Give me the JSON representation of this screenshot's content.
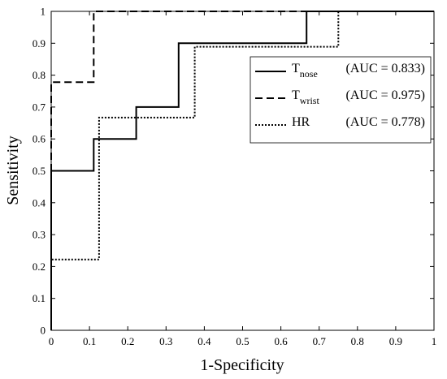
{
  "chart_data": {
    "type": "line",
    "xlabel": "1-Specificity",
    "ylabel": "Sensitivity",
    "xlim": [
      0,
      1
    ],
    "ylim": [
      0,
      1
    ],
    "xticks": [
      "0",
      "0.1",
      "0.2",
      "0.3",
      "0.4",
      "0.5",
      "0.6",
      "0.7",
      "0.8",
      "0.9",
      "1"
    ],
    "yticks": [
      "0",
      "0.1",
      "0.2",
      "0.3",
      "0.4",
      "0.5",
      "0.6",
      "0.7",
      "0.8",
      "0.9",
      "1"
    ],
    "grid": false,
    "legend_position": "top-right",
    "series": [
      {
        "name_main": "T",
        "name_sub": "nose",
        "auc_label": "(AUC = 0.833)",
        "style": "solid",
        "x": [
          0,
          0,
          0.111,
          0.111,
          0.222,
          0.222,
          0.333,
          0.333,
          0.667,
          0.667,
          1
        ],
        "y": [
          0,
          0.5,
          0.5,
          0.6,
          0.6,
          0.7,
          0.7,
          0.9,
          0.9,
          1,
          1
        ]
      },
      {
        "name_main": "T",
        "name_sub": "wrist",
        "auc_label": "(AUC = 0.975)",
        "style": "dashed",
        "x": [
          0,
          0,
          0.111,
          0.111,
          1
        ],
        "y": [
          0,
          0.778,
          0.778,
          1,
          1
        ]
      },
      {
        "name_main": "HR",
        "name_sub": "",
        "auc_label": "(AUC = 0.778)",
        "style": "dotted",
        "x": [
          0,
          0,
          0.125,
          0.125,
          0.375,
          0.375,
          0.75,
          0.75,
          1
        ],
        "y": [
          0,
          0.222,
          0.222,
          0.667,
          0.667,
          0.889,
          0.889,
          1,
          1
        ]
      }
    ]
  }
}
